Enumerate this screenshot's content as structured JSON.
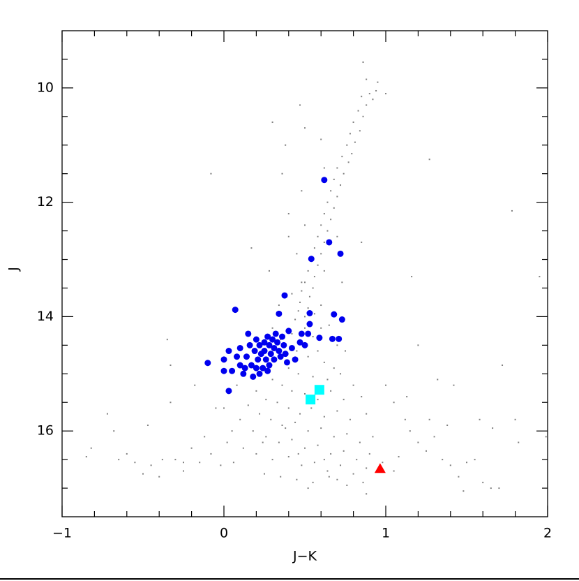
{
  "chart_data": {
    "type": "scatter",
    "x_label": "J−K",
    "y_label": "J",
    "xlim": [
      -1,
      2
    ],
    "ylim": [
      17.5,
      9
    ],
    "xticks": [
      {
        "value": -1,
        "label": "−1"
      },
      0,
      1,
      2
    ],
    "yticks": [
      10,
      12,
      14,
      16
    ],
    "xminorticks": [
      -0.8,
      -0.6,
      -0.4,
      -0.2,
      0.2,
      0.4,
      0.6,
      0.8,
      1.2,
      1.4,
      1.6,
      1.8
    ],
    "yminorticks": [
      9.5,
      10.5,
      11,
      11.5,
      12.5,
      13,
      13.5,
      14.5,
      15,
      15.5,
      16.5,
      17
    ],
    "series": [
      {
        "color": "#808080",
        "marker": "dot",
        "x": [
          0.86,
          0.88,
          0.94,
          0.9,
          0.85,
          0.95,
          1.0,
          0.92,
          0.88,
          0.83,
          0.86,
          0.8,
          0.84,
          0.78,
          0.81,
          0.76,
          0.79,
          0.73,
          0.77,
          0.7,
          0.74,
          0.68,
          0.72,
          0.66,
          0.7,
          0.64,
          0.68,
          0.62,
          0.66,
          0.6,
          0.64,
          0.58,
          0.62,
          0.56,
          0.6,
          0.54,
          0.58,
          0.52,
          0.56,
          0.5,
          0.55,
          0.48,
          0.53,
          0.47,
          0.52,
          0.46,
          0.5,
          0.44,
          0.56,
          0.6,
          0.42,
          0.62,
          0.45,
          0.5,
          0.7,
          0.4,
          0.36,
          0.3,
          0.48,
          0.62,
          0.6,
          0.47,
          0.5,
          1.27,
          -0.08,
          0.38,
          0.4,
          0.73,
          0.85,
          1.16,
          1.78,
          0.17,
          0.28,
          0.48,
          0.34,
          0.3,
          0.35,
          0.42,
          0.5,
          0.55,
          0.6,
          0.65,
          0.7,
          0.75,
          0.45,
          0.52,
          0.58,
          0.62,
          0.68,
          0.4,
          0.46,
          0.55,
          0.64,
          0.72,
          0.8,
          0.3,
          0.36,
          0.42,
          0.5,
          0.58,
          0.66,
          0.74,
          0.85,
          0.2,
          0.26,
          0.33,
          0.4,
          0.47,
          0.54,
          0.62,
          0.7,
          0.78,
          0.88,
          0.15,
          0.22,
          0.29,
          0.36,
          0.44,
          0.52,
          0.6,
          0.68,
          0.76,
          0.84,
          0.92,
          0.1,
          0.18,
          0.26,
          0.34,
          0.42,
          0.5,
          0.58,
          0.66,
          0.74,
          0.82,
          0.9,
          0.98,
          0.12,
          0.2,
          0.3,
          0.4,
          0.48,
          0.56,
          0.64,
          0.72,
          0.8,
          0.88,
          1.05,
          0.25,
          0.35,
          0.45,
          0.55,
          0.65,
          0.76,
          0.86,
          0.52,
          0.88,
          0.05,
          0.0,
          0.08,
          0.38,
          0.46,
          0.62,
          0.7,
          0.24,
          -0.85,
          -0.82,
          -0.72,
          -0.68,
          -0.6,
          -0.55,
          -0.47,
          -0.45,
          -0.38,
          -0.33,
          -0.3,
          -0.25,
          -0.2,
          -0.15,
          -0.12,
          -0.08,
          -0.05,
          -0.02,
          0.02,
          0.06,
          -0.35,
          -0.33,
          -0.18,
          -0.5,
          -0.4,
          -0.25,
          -0.65,
          1.05,
          1.12,
          1.15,
          1.2,
          1.25,
          1.3,
          1.35,
          1.4,
          1.45,
          1.5,
          1.55,
          1.6,
          1.65,
          1.7,
          1.48,
          1.27,
          1.32,
          1.42,
          1.58,
          1.66,
          1.8,
          1.82,
          1.72,
          1.2,
          1.13,
          1.99,
          1.0,
          1.08,
          1.38,
          1.95
        ],
        "values": [
          9.55,
          9.85,
          10.05,
          10.1,
          10.15,
          9.9,
          10.1,
          10.2,
          10.3,
          10.4,
          10.5,
          10.6,
          10.75,
          10.8,
          10.95,
          11.0,
          11.15,
          11.2,
          11.3,
          11.4,
          11.5,
          11.6,
          11.7,
          11.8,
          11.9,
          12.0,
          12.1,
          12.2,
          12.3,
          12.4,
          12.5,
          12.6,
          12.7,
          12.8,
          12.9,
          13.0,
          13.1,
          13.2,
          13.3,
          13.4,
          13.5,
          13.55,
          13.65,
          13.75,
          13.85,
          13.9,
          14.0,
          14.05,
          13.95,
          13.8,
          13.6,
          13.2,
          12.9,
          12.4,
          12.6,
          12.2,
          11.5,
          10.6,
          11.8,
          11.4,
          10.9,
          10.3,
          10.7,
          11.25,
          11.5,
          11.0,
          12.6,
          13.4,
          12.7,
          13.3,
          12.15,
          12.8,
          13.2,
          13.4,
          13.8,
          14.2,
          14.4,
          14.3,
          14.2,
          14.35,
          14.2,
          14.15,
          14.5,
          14.6,
          14.6,
          14.7,
          14.6,
          14.8,
          14.9,
          14.9,
          15.0,
          15.05,
          15.1,
          15.0,
          15.2,
          15.1,
          15.2,
          15.3,
          15.35,
          15.45,
          15.3,
          15.45,
          15.4,
          15.3,
          15.45,
          15.5,
          15.6,
          15.7,
          15.6,
          15.75,
          15.65,
          15.8,
          15.7,
          15.55,
          15.7,
          15.8,
          15.9,
          15.85,
          16.0,
          15.95,
          16.1,
          16.05,
          16.2,
          16.1,
          15.8,
          16.0,
          16.1,
          16.2,
          16.15,
          16.3,
          16.25,
          16.4,
          16.35,
          16.5,
          16.4,
          16.55,
          16.3,
          16.4,
          16.5,
          16.45,
          16.6,
          16.55,
          16.7,
          16.6,
          16.75,
          16.65,
          16.7,
          16.75,
          16.8,
          16.85,
          16.9,
          16.8,
          16.95,
          16.9,
          17.0,
          17.1,
          16.0,
          15.6,
          15.2,
          15.95,
          16.4,
          16.5,
          16.85,
          16.2,
          16.45,
          16.3,
          15.7,
          16.0,
          16.4,
          16.55,
          15.9,
          16.6,
          16.5,
          15.5,
          16.5,
          16.55,
          16.3,
          16.55,
          16.1,
          16.4,
          15.6,
          16.6,
          16.2,
          16.55,
          14.4,
          14.85,
          15.2,
          16.75,
          16.8,
          16.7,
          16.5,
          15.5,
          15.8,
          16.0,
          16.2,
          16.35,
          16.1,
          16.5,
          16.6,
          16.8,
          16.55,
          16.5,
          16.9,
          17.0,
          17.0,
          17.05,
          15.8,
          15.1,
          15.2,
          15.8,
          15.95,
          15.8,
          16.2,
          14.85,
          14.5,
          15.4,
          16.1,
          15.2,
          16.45,
          15.9,
          13.3
        ]
      },
      {
        "color": "#0000ee",
        "marker": "circle",
        "x": [
          0.62,
          0.65,
          0.72,
          0.54,
          0.375,
          0.07,
          0.34,
          0.53,
          0.68,
          0.53,
          0.73,
          -0.1,
          0.03,
          0.71,
          0.67,
          0.59,
          0.0,
          0.0,
          0.03,
          0.05,
          0.08,
          0.1,
          0.1,
          0.12,
          0.14,
          0.15,
          0.16,
          0.17,
          0.18,
          0.19,
          0.2,
          0.21,
          0.22,
          0.23,
          0.24,
          0.25,
          0.25,
          0.26,
          0.27,
          0.28,
          0.28,
          0.29,
          0.3,
          0.31,
          0.31,
          0.32,
          0.33,
          0.34,
          0.35,
          0.36,
          0.37,
          0.38,
          0.39,
          0.4,
          0.42,
          0.44,
          0.48,
          0.5,
          0.52,
          0.47,
          0.2,
          0.13,
          0.22,
          0.27
        ],
        "values": [
          11.61,
          12.7,
          12.9,
          12.99,
          13.63,
          13.88,
          13.95,
          13.94,
          13.96,
          14.13,
          14.05,
          14.81,
          15.3,
          14.39,
          14.39,
          14.37,
          14.95,
          14.75,
          14.6,
          14.95,
          14.7,
          14.55,
          14.85,
          15.0,
          14.7,
          14.3,
          14.5,
          14.85,
          15.05,
          14.6,
          14.4,
          14.75,
          14.5,
          14.65,
          14.9,
          14.45,
          14.6,
          14.75,
          14.35,
          14.5,
          14.85,
          14.65,
          14.4,
          14.55,
          14.75,
          14.3,
          14.45,
          14.6,
          14.7,
          14.35,
          14.5,
          14.65,
          14.8,
          14.25,
          14.55,
          14.75,
          14.3,
          14.5,
          14.3,
          14.45,
          14.9,
          14.9,
          15.0,
          14.95
        ]
      },
      {
        "color": "#00ffff",
        "marker": "square",
        "x": [
          0.59,
          0.535
        ],
        "values": [
          15.28,
          15.45
        ]
      },
      {
        "color": "#ff0000",
        "marker": "triangle",
        "x": [
          0.965
        ],
        "values": [
          16.66
        ]
      }
    ]
  }
}
